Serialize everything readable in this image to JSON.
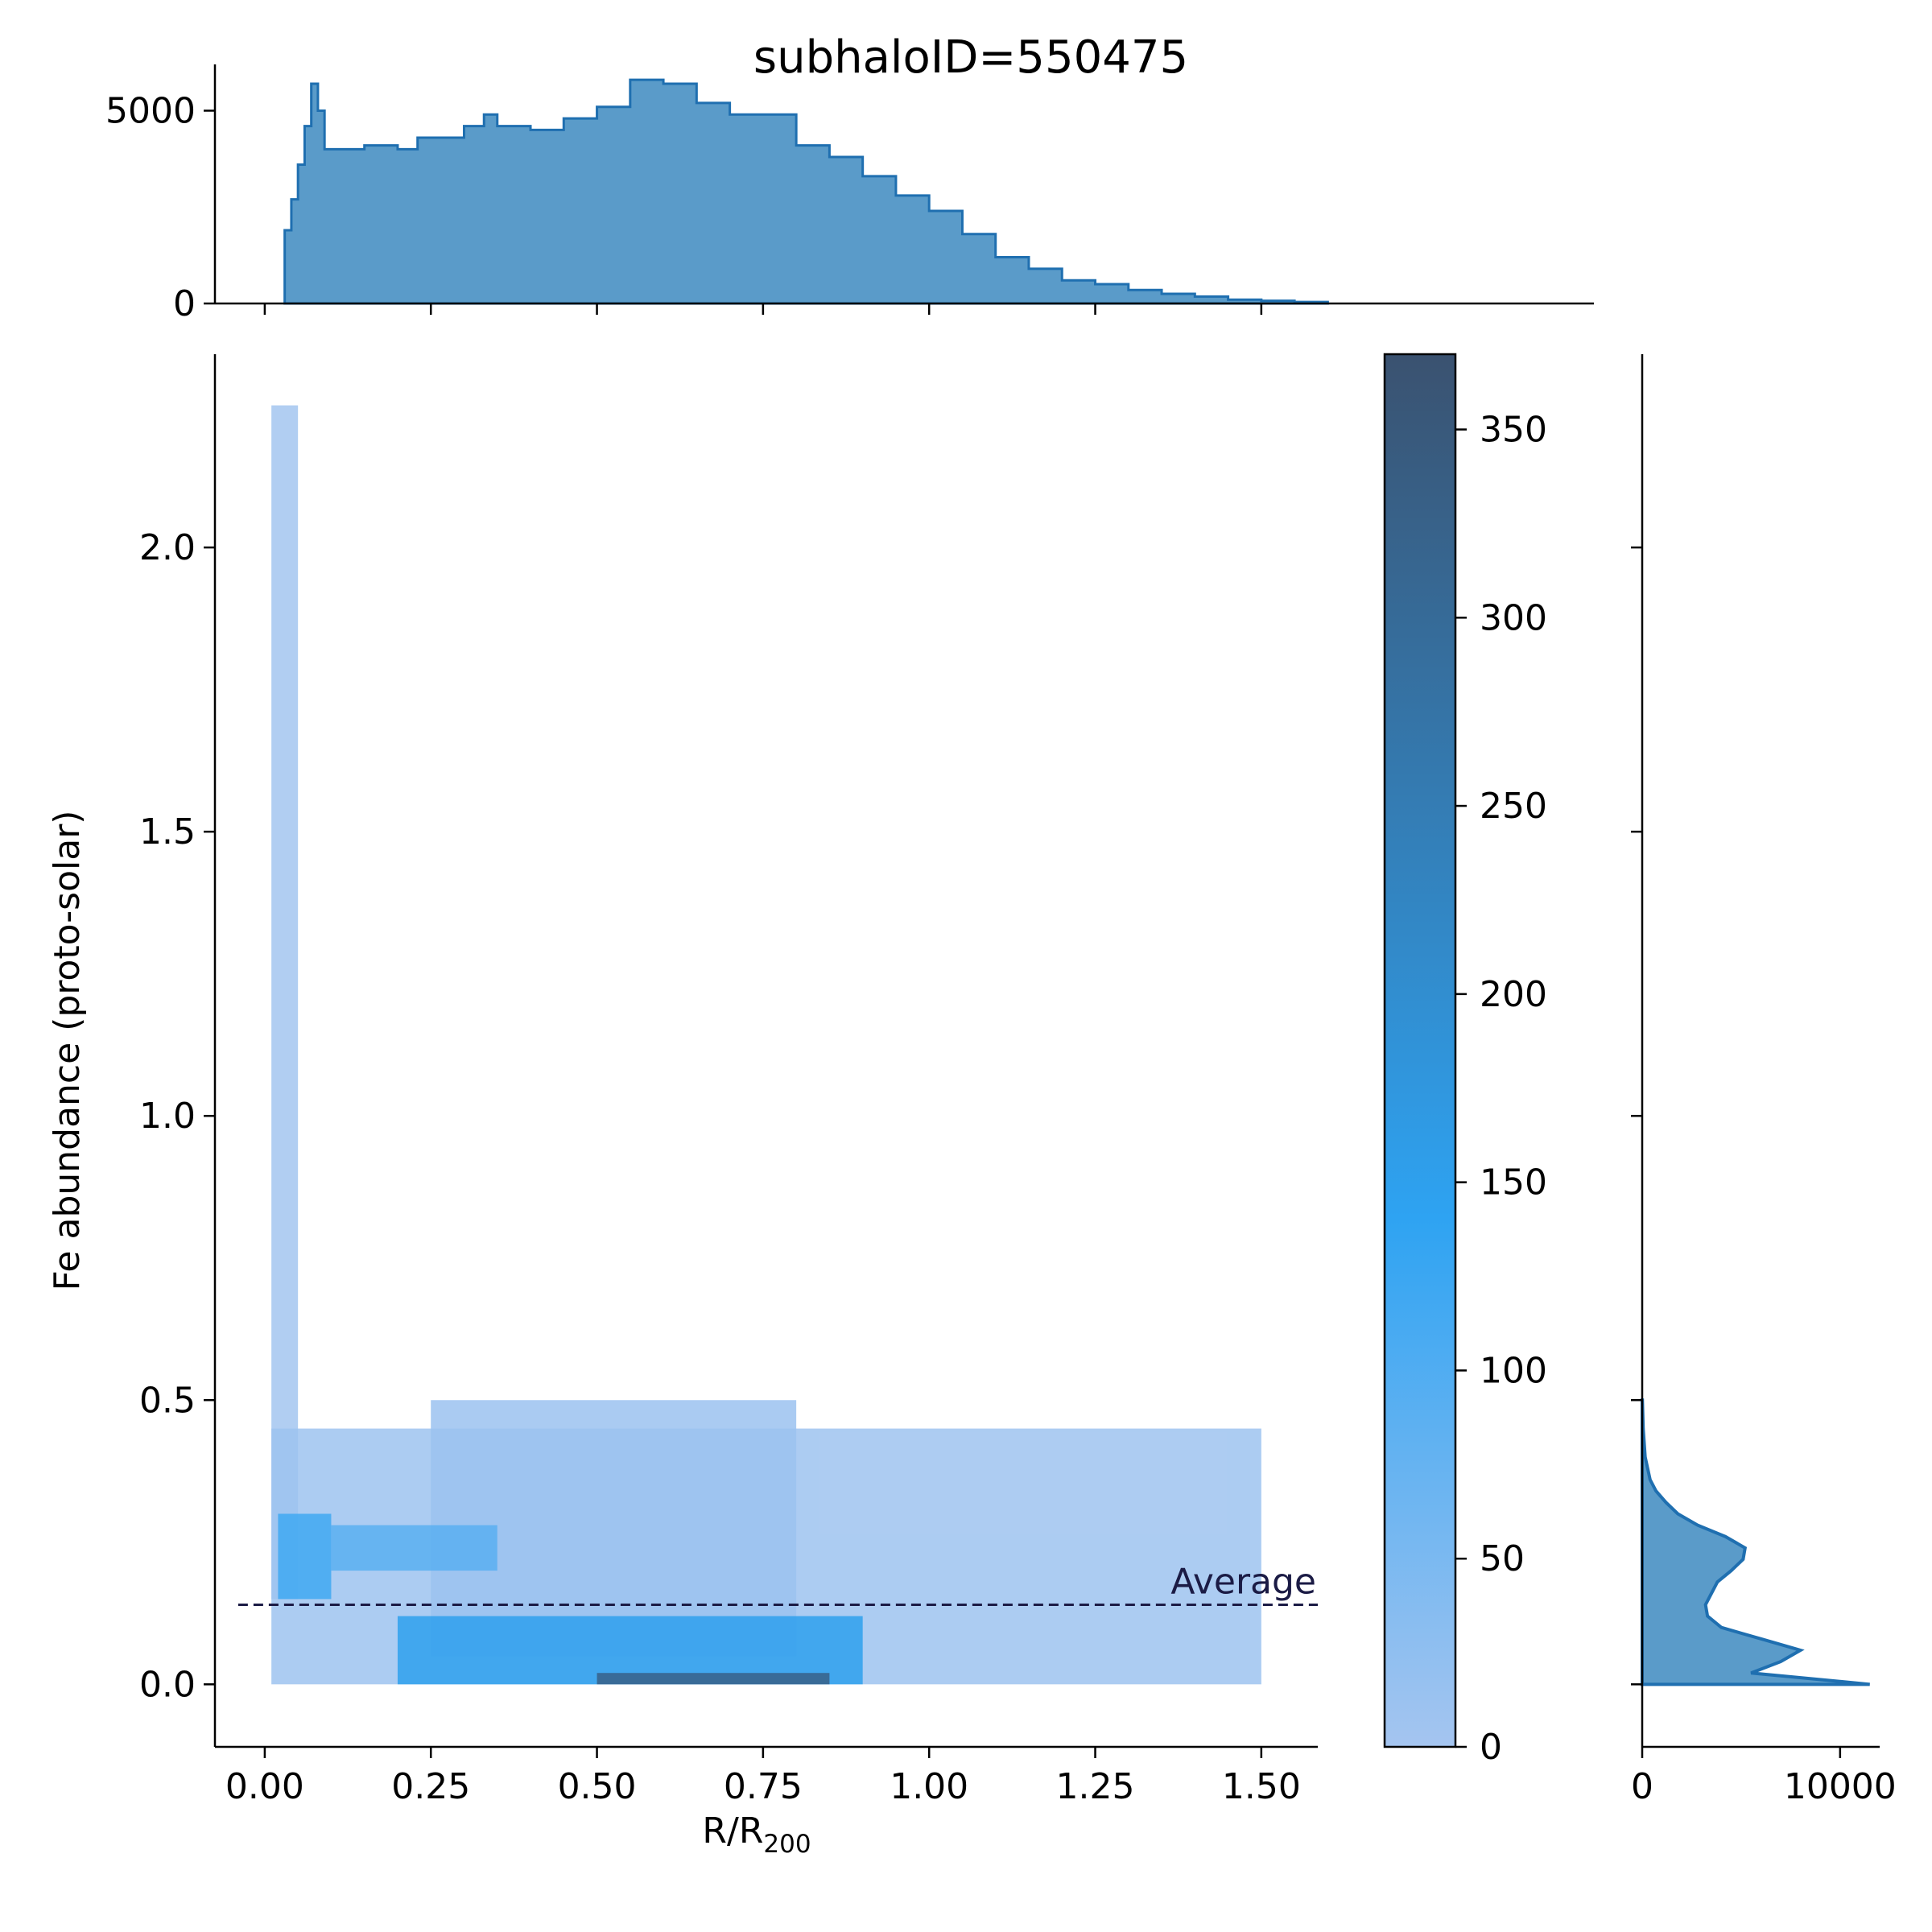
{
  "title": "subhaloID=550475",
  "chart_data": {
    "type": "heatmap",
    "title": "subhaloID=550475",
    "xlabel_main": "R/R",
    "xlabel_sub": "200",
    "ylabel": "Fe abundance (proto-solar)",
    "xlim": [
      -0.075,
      1.585
    ],
    "ylim": [
      -0.11,
      2.34
    ],
    "xticks": [
      {
        "value": 0.0,
        "label": "0.00"
      },
      {
        "value": 0.25,
        "label": "0.25"
      },
      {
        "value": 0.5,
        "label": "0.50"
      },
      {
        "value": 0.75,
        "label": "0.75"
      },
      {
        "value": 1.0,
        "label": "1.00"
      },
      {
        "value": 1.25,
        "label": "1.25"
      },
      {
        "value": 1.5,
        "label": "1.50"
      }
    ],
    "yticks": [
      {
        "value": 0.0,
        "label": "0.0"
      },
      {
        "value": 0.5,
        "label": "0.5"
      },
      {
        "value": 1.0,
        "label": "1.0"
      },
      {
        "value": 1.5,
        "label": "1.5"
      },
      {
        "value": 2.0,
        "label": "2.0"
      }
    ],
    "average": {
      "value": 0.14,
      "label": "Average",
      "style": "dashed",
      "color": "#1b1b45"
    },
    "colorbar": {
      "range": [
        0,
        370
      ],
      "ticks": [
        {
          "value": 0,
          "label": "0"
        },
        {
          "value": 50,
          "label": "50"
        },
        {
          "value": 100,
          "label": "100"
        },
        {
          "value": 150,
          "label": "150"
        },
        {
          "value": 200,
          "label": "200"
        },
        {
          "value": 250,
          "label": "250"
        },
        {
          "value": 300,
          "label": "300"
        },
        {
          "value": 350,
          "label": "350"
        }
      ],
      "colors": [
        "#a5c5f0",
        "#2ea3f2",
        "#3a5270"
      ]
    },
    "top_histogram": {
      "ylim": [
        0,
        6200
      ],
      "yticks": [
        {
          "value": 0,
          "label": "0"
        },
        {
          "value": 5000,
          "label": "5000"
        }
      ],
      "fill": "#5a9bc9",
      "stroke": "#1f6fb0",
      "x": [
        0.03,
        0.04,
        0.05,
        0.06,
        0.07,
        0.08,
        0.09,
        0.1,
        0.15,
        0.2,
        0.23,
        0.25,
        0.3,
        0.33,
        0.35,
        0.4,
        0.45,
        0.5,
        0.55,
        0.6,
        0.65,
        0.7,
        0.75,
        0.8,
        0.85,
        0.9,
        0.95,
        1.0,
        1.05,
        1.1,
        1.15,
        1.2,
        1.25,
        1.3,
        1.35,
        1.4,
        1.45,
        1.5,
        1.55,
        1.6
      ],
      "counts": [
        1900,
        2700,
        3600,
        4600,
        5700,
        5000,
        4000,
        4000,
        4100,
        4000,
        4300,
        4300,
        4600,
        4900,
        4600,
        4500,
        4800,
        5100,
        5800,
        5700,
        5200,
        4900,
        4900,
        4100,
        3800,
        3300,
        2800,
        2400,
        1800,
        1200,
        900,
        600,
        500,
        350,
        250,
        180,
        100,
        70,
        40,
        20
      ]
    },
    "right_histogram": {
      "xlim": [
        0,
        12000
      ],
      "xticks": [
        {
          "value": 0,
          "label": "0"
        },
        {
          "value": 10000,
          "label": "10000"
        }
      ],
      "fill": "#5a9bc9",
      "stroke": "#1f6fb0",
      "y": [
        0.0,
        0.02,
        0.04,
        0.06,
        0.08,
        0.1,
        0.12,
        0.14,
        0.16,
        0.18,
        0.2,
        0.22,
        0.24,
        0.26,
        0.28,
        0.3,
        0.32,
        0.34,
        0.36,
        0.4,
        0.45,
        0.5
      ],
      "counts": [
        11500,
        5500,
        7000,
        8000,
        6000,
        4000,
        3300,
        3200,
        3500,
        3800,
        4500,
        5100,
        5200,
        4200,
        2800,
        1800,
        1200,
        700,
        400,
        150,
        50,
        10
      ]
    },
    "density_regions": [
      {
        "x0": 0.01,
        "x1": 0.05,
        "y0": 0.15,
        "y1": 2.25,
        "level": 2
      },
      {
        "x0": 0.01,
        "x1": 1.5,
        "y0": 0.0,
        "y1": 0.45,
        "level": 8
      },
      {
        "x0": 0.25,
        "x1": 0.8,
        "y0": 0.05,
        "y1": 0.5,
        "level": 12
      },
      {
        "x0": 0.02,
        "x1": 0.1,
        "y0": 0.15,
        "y1": 0.3,
        "level": 120
      },
      {
        "x0": 0.1,
        "x1": 0.35,
        "y0": 0.2,
        "y1": 0.28,
        "level": 90
      },
      {
        "x0": 0.2,
        "x1": 0.9,
        "y0": 0.0,
        "y1": 0.12,
        "level": 150
      },
      {
        "x0": 0.5,
        "x1": 0.85,
        "y0": 0.0,
        "y1": 0.02,
        "level": 330
      }
    ]
  }
}
